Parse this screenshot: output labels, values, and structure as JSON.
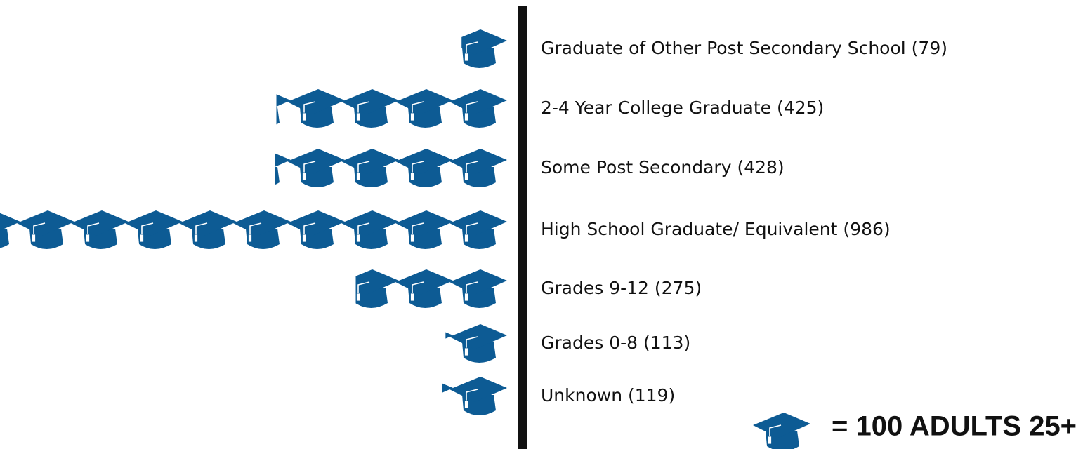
{
  "chart_data": {
    "type": "pictograph",
    "categories": [
      "Graduate of Other Post Secondary School",
      "2-4 Year College Graduate",
      "Some Post Secondary",
      "High School Graduate/ Equivalent",
      "Grades 9-12",
      "Grades 0-8",
      "Unknown"
    ],
    "values": [
      79,
      425,
      428,
      986,
      275,
      113,
      119
    ],
    "value_labels": [
      "(79)",
      "(425)",
      "(428)",
      "(986)",
      "(275)",
      "(113)",
      "(119)"
    ],
    "color": "#0d5b94",
    "unit": 100,
    "unit_label": "= 100 ADULTS 25+"
  }
}
